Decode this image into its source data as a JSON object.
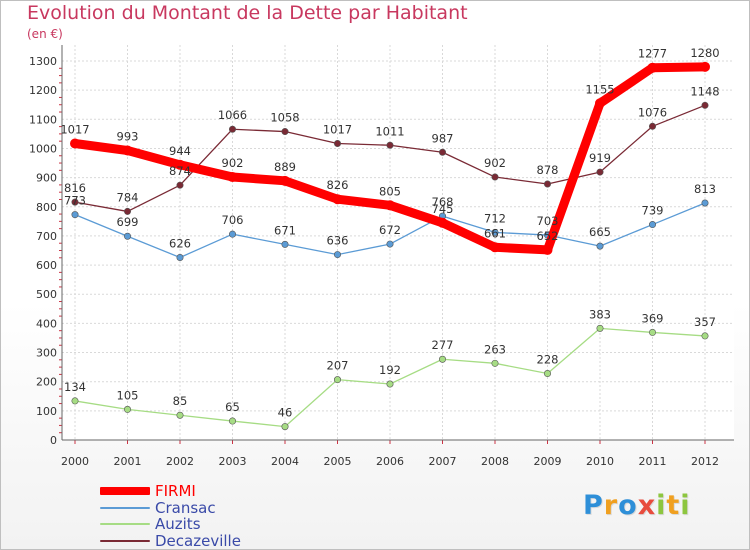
{
  "header": {
    "title": "Evolution du Montant de la Dette par Habitant",
    "subtitle": "(en €)"
  },
  "logo": {
    "letters": [
      "P",
      "r",
      "o",
      "x",
      "i",
      "t",
      "i"
    ],
    "colors": [
      "#2e8fd8",
      "#f0a020",
      "#2e8fd8",
      "#e84c3d",
      "#8dc63f",
      "#f0a020",
      "#8dc63f"
    ]
  },
  "chart_data": {
    "type": "line",
    "title": "Evolution du Montant de la Dette par Habitant",
    "subtitle": "(en €)",
    "xlabel": "",
    "ylabel": "",
    "ylim": [
      0,
      1300
    ],
    "yticks": [
      0,
      100,
      200,
      300,
      400,
      500,
      600,
      700,
      800,
      900,
      1000,
      1100,
      1200,
      1300
    ],
    "x": [
      "2000",
      "2001",
      "2002",
      "2003",
      "2004",
      "2005",
      "2006",
      "2007",
      "2008",
      "2009",
      "2010",
      "2011",
      "2012"
    ],
    "grid": true,
    "legend_position": "bottom-left",
    "series": [
      {
        "name": "Decazeville",
        "color": "#7a2a35",
        "values": [
          816,
          784,
          874,
          1066,
          1058,
          1017,
          1011,
          987,
          902,
          878,
          919,
          1076,
          1148
        ]
      },
      {
        "name": "Cransac",
        "color": "#5b9bd5",
        "values": [
          773,
          699,
          626,
          706,
          671,
          636,
          672,
          768,
          712,
          703,
          665,
          739,
          813
        ]
      },
      {
        "name": "Auzits",
        "color": "#a6dc84",
        "values": [
          134,
          105,
          85,
          65,
          46,
          207,
          192,
          277,
          263,
          228,
          383,
          369,
          357
        ]
      },
      {
        "name": "FIRMI",
        "color": "#ff0000",
        "values": [
          1017,
          993,
          944,
          902,
          889,
          826,
          805,
          745,
          661,
          652,
          1155,
          1277,
          1280
        ]
      }
    ]
  },
  "legend": {
    "items": [
      {
        "label": "FIRMI",
        "color": "#ff0000"
      },
      {
        "label": "Cransac",
        "color": "#5b9bd5"
      },
      {
        "label": "Auzits",
        "color": "#a6dc84"
      },
      {
        "label": "Decazeville",
        "color": "#7a2a35"
      }
    ]
  }
}
